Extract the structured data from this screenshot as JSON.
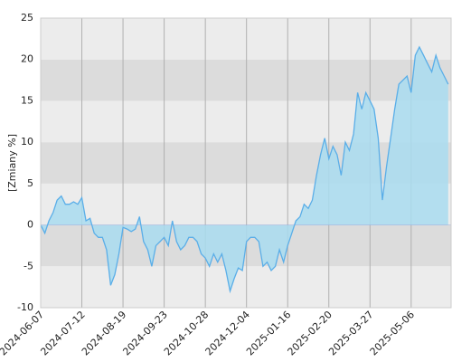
{
  "chart_data": {
    "type": "area",
    "y_label": "[Zmiany %]",
    "values": [
      0,
      -1,
      0.5,
      1.5,
      3,
      3.5,
      2.5,
      2.5,
      2.8,
      2.5,
      3.3,
      0.5,
      0.8,
      -1,
      -1.5,
      -1.5,
      -3,
      -7.3,
      -6,
      -3.5,
      -0.3,
      -0.5,
      -0.8,
      -0.5,
      1,
      -2,
      -3,
      -5,
      -2.5,
      -2,
      -1.5,
      -2.5,
      0.5,
      -2,
      -3,
      -2.5,
      -1.5,
      -1.5,
      -2,
      -3.5,
      -4,
      -5,
      -3.5,
      -4.5,
      -3.5,
      -5.5,
      -8,
      -6.5,
      -5.2,
      -5.5,
      -2,
      -1.5,
      -1.5,
      -2,
      -5,
      -4.5,
      -5.5,
      -5,
      -3,
      -4.5,
      -2.5,
      -1,
      0.5,
      1,
      2.5,
      2,
      3,
      6,
      8.5,
      10.5,
      8,
      9.5,
      8.5,
      6,
      10,
      9,
      11,
      16,
      14,
      16,
      15,
      14,
      10.5,
      3,
      7,
      10.5,
      14,
      17,
      17.5,
      18,
      16,
      20.5,
      21.5,
      20.5,
      19.5,
      18.5,
      20.5,
      19,
      18,
      17
    ],
    "color": "#5aaee8",
    "fill_color": "#a9dcf0",
    "xlim": [
      0,
      99.7
    ],
    "xticks": [
      {
        "value": 0,
        "label": "2024-06-07"
      },
      {
        "value": 10,
        "label": "2024-07-12"
      },
      {
        "value": 20,
        "label": "2024-08-19"
      },
      {
        "value": 30,
        "label": "2024-09-23"
      },
      {
        "value": 40,
        "label": "2024-10-28"
      },
      {
        "value": 50,
        "label": "2024-12-04"
      },
      {
        "value": 60,
        "label": "2025-01-16"
      },
      {
        "value": 70,
        "label": "2025-02-20"
      },
      {
        "value": 80,
        "label": "2025-03-27"
      },
      {
        "value": 90,
        "label": "2025-05-06"
      }
    ],
    "ylim": [
      -10,
      25
    ],
    "yticks": [
      -10,
      -5,
      0,
      5,
      10,
      15,
      20,
      25
    ],
    "grid": true
  }
}
